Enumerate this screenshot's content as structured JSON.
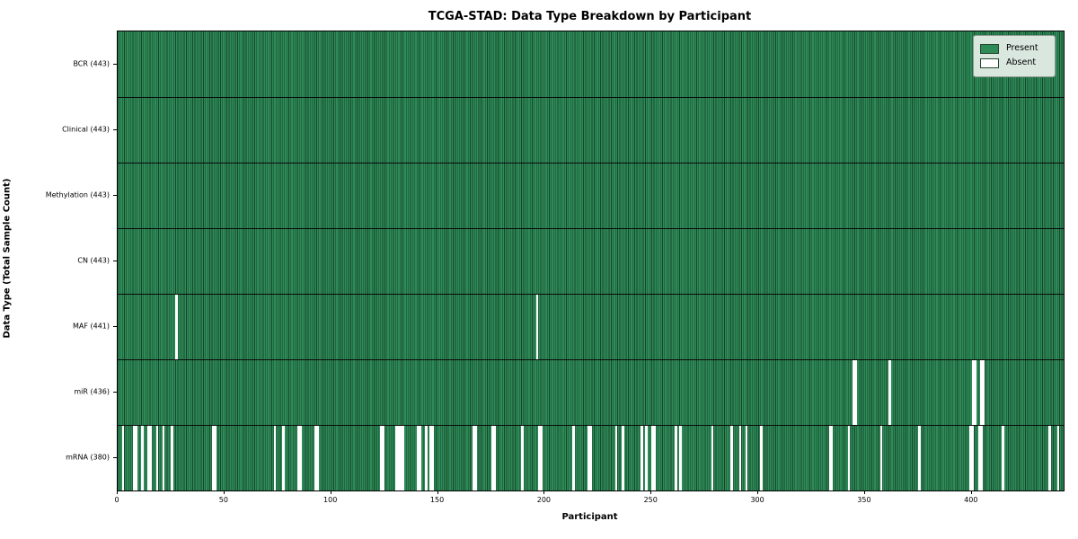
{
  "title": "TCGA-STAD: Data Type Breakdown by Participant",
  "x_axis": {
    "label": "Participant",
    "ticks": [
      0,
      50,
      100,
      150,
      200,
      250,
      300,
      350,
      400
    ]
  },
  "y_axis": {
    "label": "Data Type (Total Sample Count)"
  },
  "legend": {
    "present_label": "Present",
    "absent_label": "Absent"
  },
  "colors": {
    "present_fill": "#2e8b57",
    "present_edge": "#17452c",
    "absent_fill": "#ffffff",
    "legend_bg": "#d9e7de"
  },
  "chart_data": {
    "type": "heatmap",
    "title": "TCGA-STAD: Data Type Breakdown by Participant",
    "xlabel": "Participant",
    "ylabel": "Data Type (Total Sample Count)",
    "x_range": [
      0,
      443
    ],
    "n_participants": 443,
    "grid": false,
    "legend_position": "upper right",
    "legend_entries": [
      "Present",
      "Absent"
    ],
    "rows": [
      {
        "name": "BCR",
        "label": "BCR (443)",
        "present_count": 443,
        "absent_count": 0,
        "absent_participants": []
      },
      {
        "name": "Clinical",
        "label": "Clinical (443)",
        "present_count": 443,
        "absent_count": 0,
        "absent_participants": []
      },
      {
        "name": "Methylation",
        "label": "Methylation (443)",
        "present_count": 443,
        "absent_count": 0,
        "absent_participants": []
      },
      {
        "name": "CN",
        "label": "CN (443)",
        "present_count": 443,
        "absent_count": 0,
        "absent_participants": []
      },
      {
        "name": "MAF",
        "label": "MAF (441)",
        "present_count": 441,
        "absent_count": 2,
        "absent_participants": [
          27,
          196
        ]
      },
      {
        "name": "miR",
        "label": "miR (436)",
        "present_count": 436,
        "absent_count": 7,
        "absent_participants": [
          344,
          345,
          361,
          400,
          401,
          404,
          405
        ]
      },
      {
        "name": "mRNA",
        "label": "mRNA (380)",
        "present_count": 380,
        "absent_count": 63,
        "absent_participants": [
          2,
          7,
          8,
          11,
          14,
          15,
          18,
          21,
          25,
          44,
          45,
          73,
          77,
          84,
          85,
          92,
          93,
          123,
          124,
          130,
          131,
          132,
          133,
          140,
          141,
          144,
          146,
          147,
          166,
          167,
          175,
          176,
          189,
          197,
          198,
          213,
          220,
          221,
          233,
          236,
          245,
          247,
          250,
          251,
          261,
          263,
          278,
          287,
          291,
          294,
          301,
          333,
          334,
          342,
          357,
          375,
          399,
          400,
          403,
          404,
          414,
          436,
          440
        ]
      }
    ]
  }
}
